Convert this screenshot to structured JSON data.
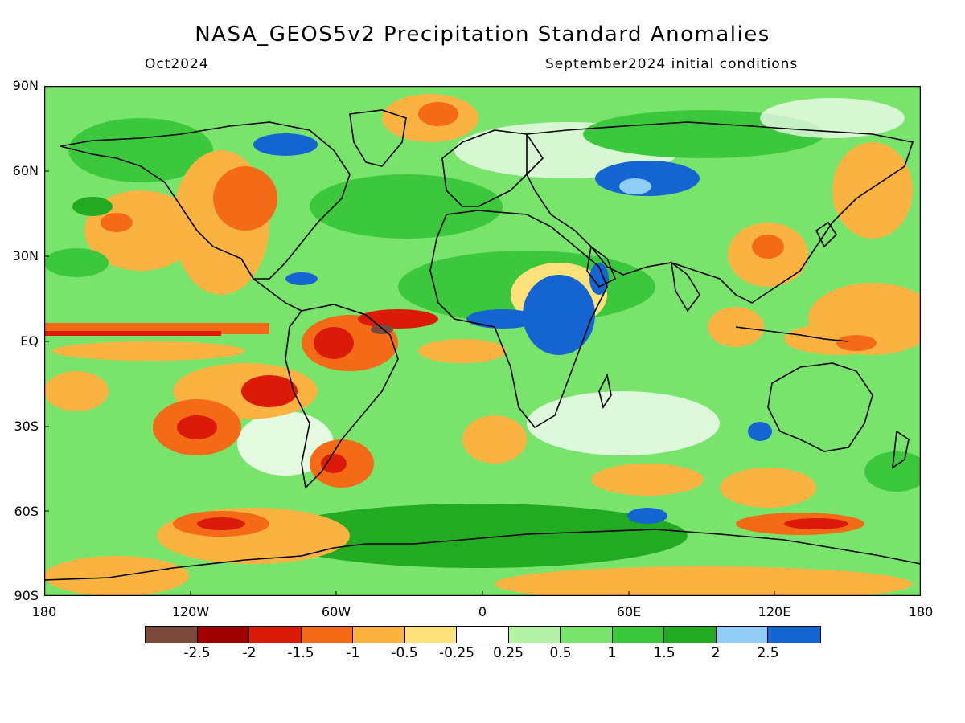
{
  "title": "NASA_GEOS5v2 Precipitation Standard Anomalies",
  "subtitle_left": "Oct2024",
  "subtitle_right": "September2024 initial conditions",
  "lat_labels": [
    "90N",
    "60N",
    "30N",
    "EQ",
    "30S",
    "60S",
    "90S"
  ],
  "lon_labels": [
    "180",
    "120W",
    "60W",
    "0",
    "60E",
    "120E",
    "180"
  ],
  "colorbar": {
    "colors": [
      "#7a4a3a",
      "#a00000",
      "#dc1a0a",
      "#f46a16",
      "#fab341",
      "#fde17a",
      "#ffffff",
      "#b4f2a8",
      "#78e46c",
      "#3cc83c",
      "#22aa22",
      "#90ccf4",
      "#1464d2"
    ],
    "labels": [
      "-2.5",
      "-2",
      "-1.5",
      "-1",
      "-0.5",
      "-0.25",
      "0.25",
      "0.5",
      "1",
      "1.5",
      "2",
      "2.5"
    ]
  }
}
